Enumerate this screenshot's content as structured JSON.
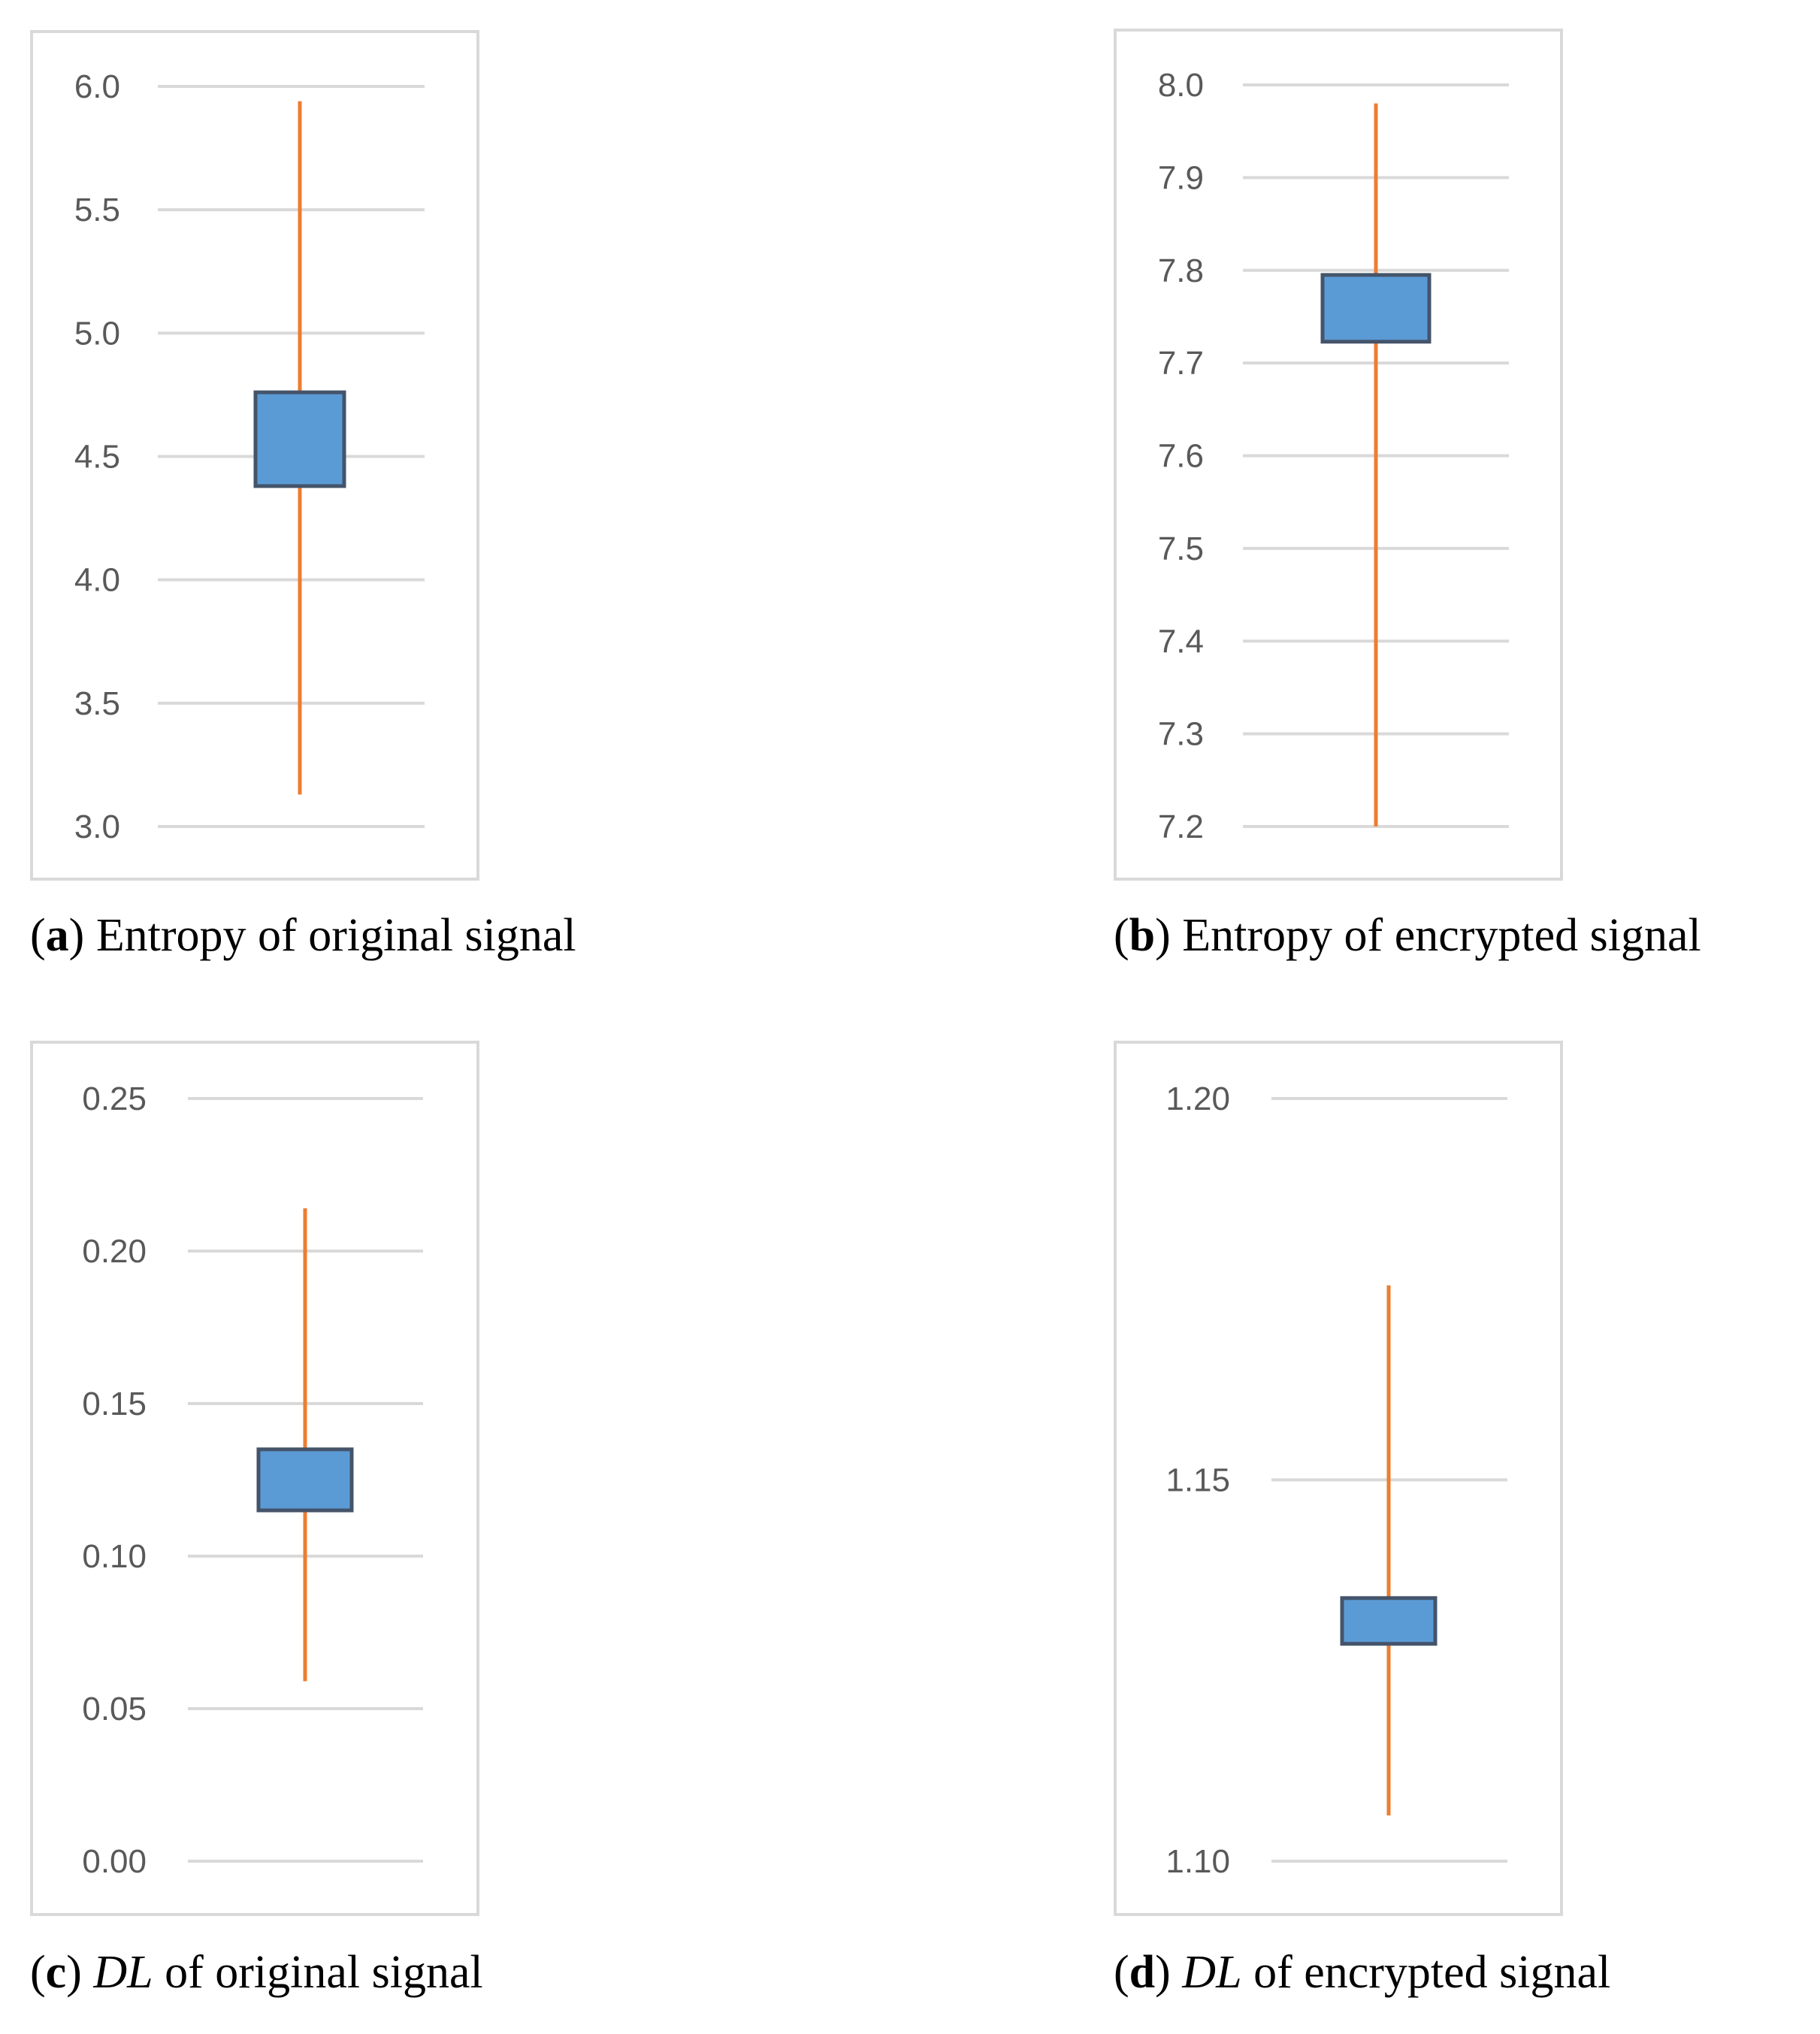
{
  "colors": {
    "box_fill": "#5b9bd5",
    "box_stroke": "#44546a",
    "whisker": "#ed7d31",
    "grid": "#d9d9d9",
    "frame": "#d9d9d9",
    "tick_text": "#595959"
  },
  "chart_data": [
    {
      "id": "a",
      "type": "box",
      "caption_letter": "a",
      "caption_prefix": "",
      "caption_rest": "Entropy of original signal",
      "ylim": [
        3.0,
        6.0
      ],
      "ticks": [
        3.0,
        3.5,
        4.0,
        4.5,
        5.0,
        5.5,
        6.0
      ],
      "tick_labels": [
        "3.0",
        "3.5",
        "4.0",
        "4.5",
        "5.0",
        "5.5",
        "6.0"
      ],
      "min": 3.13,
      "q1": 4.38,
      "q3": 4.76,
      "max": 5.94
    },
    {
      "id": "b",
      "type": "box",
      "caption_letter": "b",
      "caption_prefix": "",
      "caption_rest": "Entropy of encrypted signal",
      "ylim": [
        7.2,
        8.0
      ],
      "ticks": [
        7.2,
        7.3,
        7.4,
        7.5,
        7.6,
        7.7,
        7.8,
        7.9,
        8.0
      ],
      "tick_labels": [
        "7.2",
        "7.3",
        "7.4",
        "7.5",
        "7.6",
        "7.7",
        "7.8",
        "7.9",
        "8.0"
      ],
      "min": 7.2,
      "q1": 7.723,
      "q3": 7.795,
      "max": 7.98
    },
    {
      "id": "c",
      "type": "box",
      "caption_letter": "c",
      "caption_prefix": "DL",
      "caption_rest": " of original signal",
      "ylim": [
        0.0,
        0.25
      ],
      "ticks": [
        0.0,
        0.05,
        0.1,
        0.15,
        0.2,
        0.25
      ],
      "tick_labels": [
        "0.00",
        "0.05",
        "0.10",
        "0.15",
        "0.20",
        "0.25"
      ],
      "min": 0.059,
      "q1": 0.115,
      "q3": 0.135,
      "max": 0.214
    },
    {
      "id": "d",
      "type": "box",
      "caption_letter": "d",
      "caption_prefix": "DL",
      "caption_rest": " of encrypted signal",
      "ylim": [
        1.1,
        1.2
      ],
      "ticks": [
        1.1,
        1.15,
        1.2
      ],
      "tick_labels": [
        "1.10",
        "1.15",
        "1.20"
      ],
      "min": 1.106,
      "q1": 1.1285,
      "q3": 1.1345,
      "max": 1.1755
    }
  ]
}
